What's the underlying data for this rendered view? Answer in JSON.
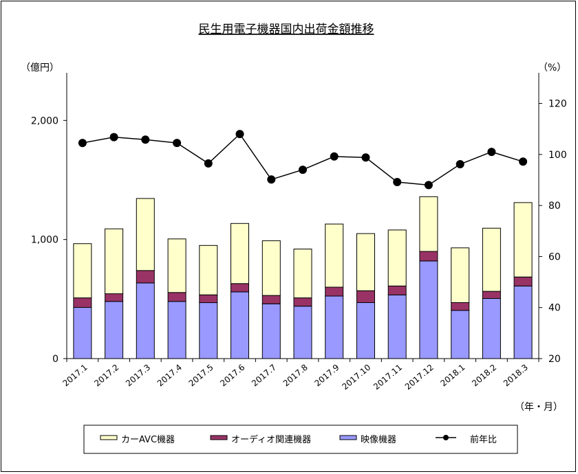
{
  "chart_data": {
    "type": "bar",
    "stacked": true,
    "title": "民生用電子機器国内出荷金額推移",
    "y_left_label": "（億円）",
    "y_right_label": "（%）",
    "x_label": "（年・月）",
    "categories": [
      "2017.1",
      "2017.2",
      "2017.3",
      "2017.4",
      "2017.5",
      "2017.6",
      "2017.7",
      "2017.8",
      "2017.9",
      "2017.10",
      "2017.11",
      "2017.12",
      "2018.1",
      "2018.2",
      "2018.3"
    ],
    "ylim": [
      0,
      2400
    ],
    "y2lim": [
      20,
      132
    ],
    "y_ticks": [
      0,
      1000,
      2000
    ],
    "y_tick_labels": [
      "0",
      "1,000",
      "2,000"
    ],
    "y2_ticks": [
      20,
      40,
      60,
      80,
      100,
      120
    ],
    "y2_tick_labels": [
      "20",
      "40",
      "60",
      "80",
      "100",
      "120"
    ],
    "series": [
      {
        "name": "映像機器",
        "axis": "left",
        "color": "#9999ff",
        "values": [
          430,
          480,
          635,
          480,
          470,
          560,
          460,
          440,
          525,
          470,
          535,
          820,
          405,
          505,
          610
        ]
      },
      {
        "name": "オーディオ関連機器",
        "axis": "left",
        "color": "#993366",
        "values": [
          80,
          65,
          105,
          75,
          65,
          70,
          70,
          70,
          75,
          100,
          75,
          80,
          65,
          60,
          75
        ]
      },
      {
        "name": "カーAVC機器",
        "axis": "left",
        "color": "#ffffcc",
        "values": [
          455,
          545,
          605,
          450,
          415,
          505,
          460,
          410,
          530,
          480,
          470,
          460,
          460,
          530,
          625
        ]
      },
      {
        "name": "前年比",
        "axis": "right",
        "type": "line",
        "color": "#000000",
        "values": [
          104.5,
          106.8,
          105.8,
          104.5,
          96.5,
          108.0,
          90.2,
          94.0,
          99.2,
          98.8,
          89.2,
          88.0,
          96.2,
          101.0,
          97.2
        ]
      }
    ],
    "legend": {
      "position": "bottom",
      "entries": [
        "カーAVC機器",
        "オーディオ関連機器",
        "映像機器",
        "前年比"
      ]
    },
    "grid": false
  }
}
